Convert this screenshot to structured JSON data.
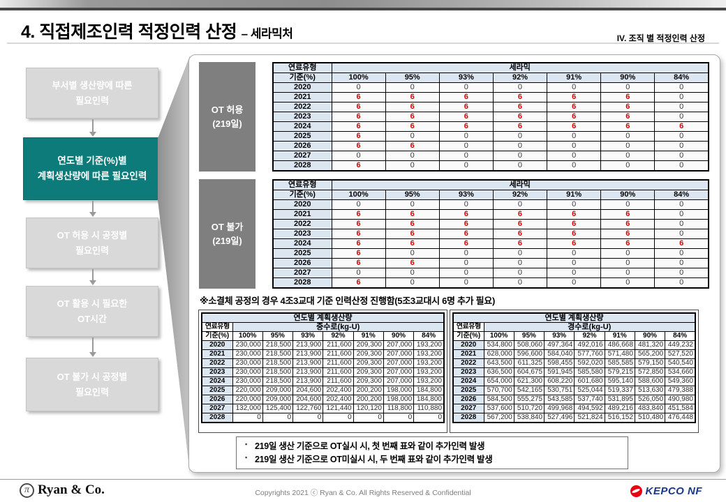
{
  "header": {
    "title": "4. 직접제조인력 적정인력 산정",
    "subtitle": "– 세라믹처",
    "section": "IV. 조직 별 적정인력 산정"
  },
  "sidebar": {
    "items": [
      {
        "line1": "부서별 생산량에 따른",
        "line2": "필요인력",
        "active": false
      },
      {
        "line1": "연도별 기준(%)별",
        "line2": "계획생산량에 따른 필요인력",
        "active": true
      },
      {
        "line1": "OT 허용 시 공정별",
        "line2": "필요인력",
        "active": false
      },
      {
        "line1": "OT 활용 시 필요한",
        "line2": "OT시간",
        "active": false
      },
      {
        "line1": "OT 불가 시 공정별",
        "line2": "필요인력",
        "active": false
      }
    ]
  },
  "tables": {
    "ot_allowed": {
      "label_line1": "OT 허용",
      "label_line2": "(219일)",
      "fuel_type_label": "연료유형",
      "fuel_type_value": "세라믹",
      "basis_label": "기준(%)",
      "columns": [
        "100%",
        "95%",
        "93%",
        "92%",
        "91%",
        "90%",
        "84%"
      ],
      "rows": [
        {
          "year": "2020",
          "values": [
            "0",
            "0",
            "0",
            "0",
            "0",
            "0",
            "0"
          ]
        },
        {
          "year": "2021",
          "values": [
            "6",
            "6",
            "6",
            "6",
            "6",
            "6",
            "0"
          ]
        },
        {
          "year": "2022",
          "values": [
            "6",
            "6",
            "6",
            "6",
            "6",
            "6",
            "0"
          ]
        },
        {
          "year": "2023",
          "values": [
            "6",
            "6",
            "6",
            "6",
            "6",
            "6",
            "0"
          ]
        },
        {
          "year": "2024",
          "values": [
            "6",
            "6",
            "6",
            "6",
            "6",
            "6",
            "6"
          ]
        },
        {
          "year": "2025",
          "values": [
            "6",
            "0",
            "0",
            "0",
            "0",
            "0",
            "0"
          ]
        },
        {
          "year": "2026",
          "values": [
            "6",
            "6",
            "0",
            "0",
            "0",
            "0",
            "0"
          ]
        },
        {
          "year": "2027",
          "values": [
            "0",
            "0",
            "0",
            "0",
            "0",
            "0",
            "0"
          ]
        },
        {
          "year": "2028",
          "values": [
            "6",
            "0",
            "0",
            "0",
            "0",
            "0",
            "0"
          ]
        }
      ]
    },
    "ot_denied": {
      "label_line1": "OT 불가",
      "label_line2": "(219일)",
      "fuel_type_label": "연료유형",
      "fuel_type_value": "세라믹",
      "basis_label": "기준(%)",
      "columns": [
        "100%",
        "95%",
        "93%",
        "92%",
        "91%",
        "90%",
        "84%"
      ],
      "rows": [
        {
          "year": "2020",
          "values": [
            "0",
            "0",
            "0",
            "0",
            "0",
            "0",
            "0"
          ]
        },
        {
          "year": "2021",
          "values": [
            "6",
            "6",
            "6",
            "6",
            "6",
            "6",
            "0"
          ]
        },
        {
          "year": "2022",
          "values": [
            "6",
            "6",
            "6",
            "6",
            "6",
            "6",
            "0"
          ]
        },
        {
          "year": "2023",
          "values": [
            "6",
            "6",
            "6",
            "6",
            "6",
            "6",
            "0"
          ]
        },
        {
          "year": "2024",
          "values": [
            "6",
            "6",
            "6",
            "6",
            "6",
            "6",
            "6"
          ]
        },
        {
          "year": "2025",
          "values": [
            "6",
            "0",
            "0",
            "0",
            "0",
            "0",
            "0"
          ]
        },
        {
          "year": "2026",
          "values": [
            "6",
            "6",
            "0",
            "0",
            "0",
            "0",
            "0"
          ]
        },
        {
          "year": "2027",
          "values": [
            "0",
            "0",
            "0",
            "0",
            "0",
            "0",
            "0"
          ]
        },
        {
          "year": "2028",
          "values": [
            "6",
            "0",
            "0",
            "0",
            "0",
            "0",
            "0"
          ]
        }
      ]
    }
  },
  "shift_note": "※소결체 공정의 경우 4조3교대 기준 인력산정 진행함(5조3교대시 6명 추가 필요)",
  "production_tables": [
    {
      "title": "연도별 계획생산량",
      "fuel_type_label": "연료유형",
      "reactor": "중수로(kg-U)",
      "basis_label": "기준(%)",
      "columns": [
        "100%",
        "95%",
        "93%",
        "92%",
        "91%",
        "90%",
        "84%"
      ],
      "rows": [
        {
          "year": "2020",
          "values": [
            "230,000",
            "218,500",
            "213,900",
            "211,600",
            "209,300",
            "207,000",
            "193,200"
          ]
        },
        {
          "year": "2021",
          "values": [
            "230,000",
            "218,500",
            "213,900",
            "211,600",
            "209,300",
            "207,000",
            "193,200"
          ]
        },
        {
          "year": "2022",
          "values": [
            "230,000",
            "218,500",
            "213,900",
            "211,600",
            "209,300",
            "207,000",
            "193,200"
          ]
        },
        {
          "year": "2023",
          "values": [
            "230,000",
            "218,500",
            "213,900",
            "211,600",
            "209,300",
            "207,000",
            "193,200"
          ]
        },
        {
          "year": "2024",
          "values": [
            "230,000",
            "218,500",
            "213,900",
            "211,600",
            "209,300",
            "207,000",
            "193,200"
          ]
        },
        {
          "year": "2025",
          "values": [
            "220,000",
            "209,000",
            "204,600",
            "202,400",
            "200,200",
            "198,000",
            "184,800"
          ]
        },
        {
          "year": "2026",
          "values": [
            "220,000",
            "209,000",
            "204,600",
            "202,400",
            "200,200",
            "198,000",
            "184,800"
          ]
        },
        {
          "year": "2027",
          "values": [
            "132,000",
            "125,400",
            "122,760",
            "121,440",
            "120,120",
            "118,800",
            "110,880"
          ]
        },
        {
          "year": "2028",
          "values": [
            "0",
            "0",
            "0",
            "0",
            "0",
            "0",
            "0"
          ]
        }
      ]
    },
    {
      "title": "연도별 계획생산량",
      "fuel_type_label": "연료유형",
      "reactor": "경수로(kg-U)",
      "basis_label": "기준(%)",
      "columns": [
        "100%",
        "95%",
        "93%",
        "92%",
        "91%",
        "90%",
        "84%"
      ],
      "rows": [
        {
          "year": "2020",
          "values": [
            "534,800",
            "508,060",
            "497,364",
            "492,016",
            "486,668",
            "481,320",
            "449,232"
          ]
        },
        {
          "year": "2021",
          "values": [
            "628,000",
            "596,600",
            "584,040",
            "577,760",
            "571,480",
            "565,200",
            "527,520"
          ]
        },
        {
          "year": "2022",
          "values": [
            "643,500",
            "611,325",
            "598,455",
            "592,020",
            "585,585",
            "579,150",
            "540,540"
          ]
        },
        {
          "year": "2023",
          "values": [
            "636,500",
            "604,675",
            "591,945",
            "585,580",
            "579,215",
            "572,850",
            "534,660"
          ]
        },
        {
          "year": "2024",
          "values": [
            "654,000",
            "621,300",
            "608,220",
            "601,680",
            "595,140",
            "588,600",
            "549,360"
          ]
        },
        {
          "year": "2025",
          "values": [
            "570,700",
            "542,165",
            "530,751",
            "525,044",
            "519,337",
            "513,630",
            "479,388"
          ]
        },
        {
          "year": "2026",
          "values": [
            "584,500",
            "555,275",
            "543,585",
            "537,740",
            "531,895",
            "526,050",
            "490,980"
          ]
        },
        {
          "year": "2027",
          "values": [
            "537,600",
            "510,720",
            "499,968",
            "494,592",
            "489,216",
            "483,840",
            "451,584"
          ]
        },
        {
          "year": "2028",
          "values": [
            "567,200",
            "538,840",
            "527,496",
            "521,824",
            "516,152",
            "510,480",
            "476,448"
          ]
        }
      ]
    }
  ],
  "bullets": [
    "219일 생산 기준으로 OT실시 시, 첫 번째 표와 같이 추가인력 발생",
    "219일 생산 기준으로 OT미실시 시, 두 번째 표와 같이 추가인력 발생"
  ],
  "footer": {
    "brand_symbol": "π",
    "brand": "Ryan & Co.",
    "copyright": "Copyrights 2021 ⓒ Ryan & Co. All Rights Reserved & Confidential",
    "kepco": "KEPCO NF"
  },
  "colors": {
    "accent_teal": "#0E7B7B",
    "table_header_blue": "#DCE6F1",
    "highlight_red": "#E00000",
    "label_gray": "#7F7F7F",
    "kepco_blue": "#17388E",
    "kepco_red": "#E60012"
  }
}
